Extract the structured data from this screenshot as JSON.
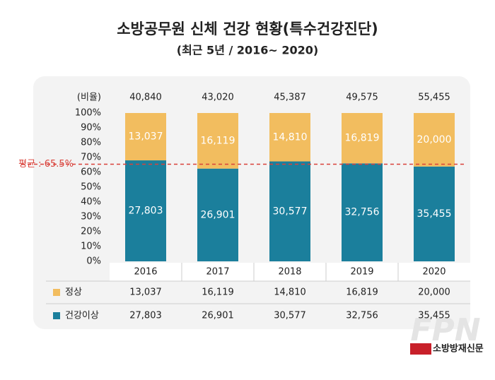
{
  "chart_data": {
    "type": "stacked-percent-bar",
    "title": "소방공무원 신체 건강 현황(특수건강진단)",
    "subtitle": "(최근 5년 / 2016~ 2020)",
    "y_label": "(비율)",
    "categories": [
      "2016",
      "2017",
      "2018",
      "2019",
      "2020"
    ],
    "totals": {
      "values": [
        40840,
        43020,
        45387,
        49575,
        55455
      ],
      "value_labels": [
        "40,840",
        "43,020",
        "45,387",
        "49,575",
        "55,455"
      ]
    },
    "series": [
      {
        "name": "건강이상",
        "color": "#1b7f9c",
        "values": [
          27803,
          26901,
          30577,
          32756,
          35455
        ],
        "value_labels": [
          "27,803",
          "26,901",
          "30,577",
          "32,756",
          "35,455"
        ]
      },
      {
        "name": "정상",
        "color": "#f2bd5f",
        "values": [
          13037,
          16119,
          14810,
          16819,
          20000
        ],
        "value_labels": [
          "13,037",
          "16,119",
          "14,810",
          "16,819",
          "20,000"
        ]
      }
    ],
    "ylim": [
      0,
      100
    ],
    "yticks": [
      {
        "value": 0,
        "label": "0%"
      },
      {
        "value": 10,
        "label": "10%"
      },
      {
        "value": 20,
        "label": "20%"
      },
      {
        "value": 30,
        "label": "30%"
      },
      {
        "value": 40,
        "label": "40%"
      },
      {
        "value": 50,
        "label": "50%"
      },
      {
        "value": 60,
        "label": "60%"
      },
      {
        "value": 70,
        "label": "70%"
      },
      {
        "value": 80,
        "label": "80%"
      },
      {
        "value": 90,
        "label": "90%"
      },
      {
        "value": 100,
        "label": "100%"
      }
    ],
    "reference_line": {
      "value": 65.5,
      "label": "평균 : 65.5%",
      "color": "#d9413a"
    },
    "watermark": "FPN",
    "source": "소방방재신문"
  }
}
